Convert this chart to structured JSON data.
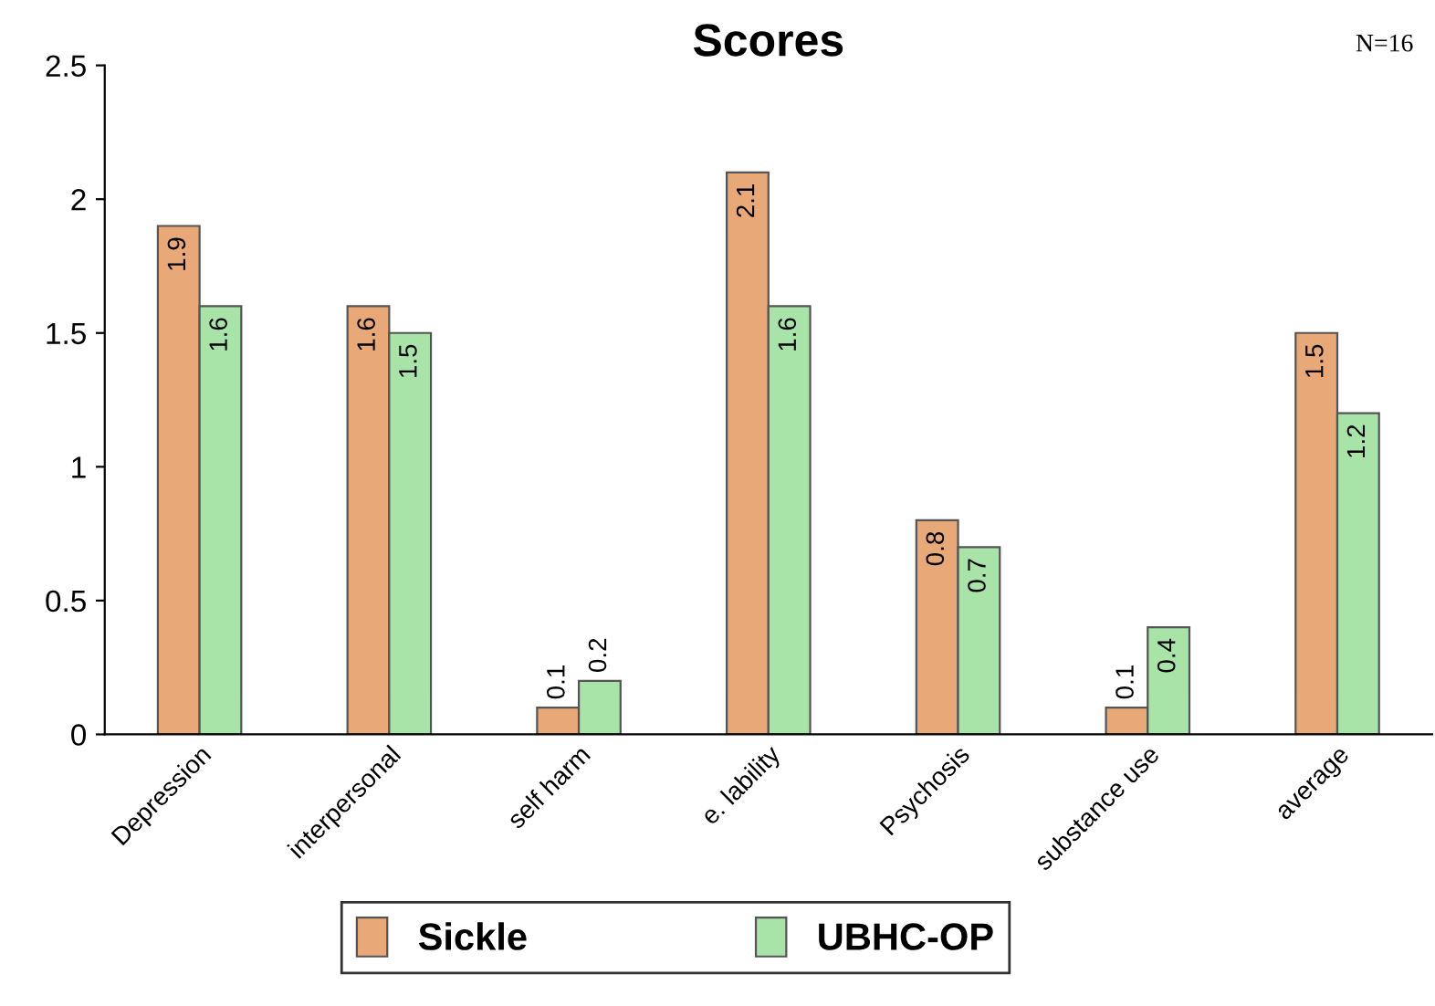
{
  "chart_data": {
    "type": "bar",
    "title": "Scores",
    "annotations": [
      "N=16"
    ],
    "categories": [
      "Depression",
      "interpersonal",
      "self harm",
      "e. lability",
      "Psychosis",
      "substance use",
      "average"
    ],
    "series": [
      {
        "name": "Sickle",
        "color": "#e8a878",
        "values": [
          1.9,
          1.6,
          0.1,
          2.1,
          0.8,
          0.1,
          1.5
        ]
      },
      {
        "name": "UBHC-OP",
        "color": "#a8e4a8",
        "values": [
          1.6,
          1.5,
          0.2,
          1.6,
          0.7,
          0.4,
          1.2
        ]
      }
    ],
    "ylim": [
      0,
      2.5
    ],
    "yticks": [
      0,
      {
        "value": 0.5,
        "label": "0.5"
      },
      1,
      {
        "value": 1.5,
        "label": "1.5"
      },
      2,
      {
        "value": 2.5,
        "label": "2.5"
      }
    ],
    "data_labels": true,
    "grid": false,
    "legend": "bottom"
  }
}
